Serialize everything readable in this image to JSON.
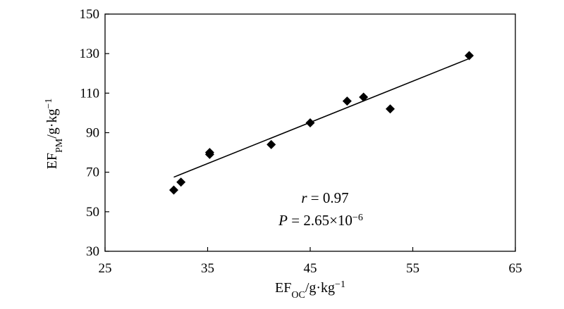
{
  "chart_data": {
    "type": "scatter",
    "xlim": [
      25,
      65
    ],
    "ylim": [
      30,
      150
    ],
    "x_ticks": [
      25,
      35,
      45,
      55,
      65
    ],
    "y_ticks": [
      30,
      50,
      70,
      90,
      110,
      130,
      150
    ],
    "xlabel": {
      "main": "EF",
      "sub": "OC",
      "rest": "/g·kg",
      "sup": "−1"
    },
    "ylabel": {
      "main": "EF",
      "sub": "PM",
      "rest": "/g·kg",
      "sup": "−1"
    },
    "points": [
      {
        "x": 31.7,
        "y": 61
      },
      {
        "x": 32.4,
        "y": 65
      },
      {
        "x": 35.2,
        "y": 79
      },
      {
        "x": 35.2,
        "y": 80
      },
      {
        "x": 41.2,
        "y": 84
      },
      {
        "x": 45.0,
        "y": 95
      },
      {
        "x": 48.6,
        "y": 106
      },
      {
        "x": 50.2,
        "y": 108
      },
      {
        "x": 52.8,
        "y": 102
      },
      {
        "x": 60.5,
        "y": 129
      }
    ],
    "fit_line": {
      "x": [
        31.7,
        60.5
      ],
      "y": [
        67.5,
        127.5
      ]
    },
    "grid": false,
    "annotations": {
      "r_symbol": "r",
      "r_value": " = 0.97",
      "p_symbol": "P",
      "p_value": " = 2.65×10",
      "p_exp": "−6"
    }
  }
}
